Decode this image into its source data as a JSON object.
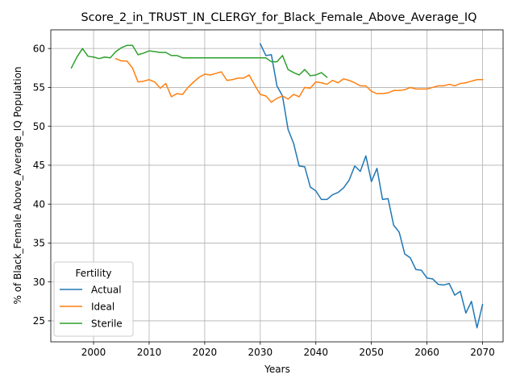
{
  "chart_data": {
    "type": "line",
    "title": "Score_2_in_TRUST_IN_CLERGY_for_Black_Female_Above_Average_IQ",
    "xlabel": "Years",
    "ylabel": "% of Black_Female Above_Average_IQ Population",
    "xlim": [
      1992.3,
      2073.7
    ],
    "ylim": [
      22.3,
      62.4
    ],
    "xticks": [
      2000,
      2010,
      2020,
      2030,
      2040,
      2050,
      2060,
      2070
    ],
    "yticks": [
      25,
      30,
      35,
      40,
      45,
      50,
      55,
      60
    ],
    "grid": true,
    "legend": {
      "title": "Fertility",
      "placement": "lower-left"
    },
    "series": [
      {
        "name": "Actual",
        "color": "#1f77b4",
        "x": [
          2030,
          2031,
          2032,
          2033,
          2034,
          2035,
          2036,
          2037,
          2038,
          2039,
          2040,
          2041,
          2042,
          2043,
          2044,
          2045,
          2046,
          2047,
          2048,
          2049,
          2050,
          2051,
          2052,
          2053,
          2054,
          2055,
          2056,
          2057,
          2058,
          2059,
          2060,
          2061,
          2062,
          2063,
          2064,
          2065,
          2066,
          2067,
          2068,
          2069,
          2070
        ],
        "y": [
          60.6,
          59.1,
          59.2,
          55.2,
          53.9,
          49.6,
          47.8,
          44.9,
          44.8,
          42.2,
          41.7,
          40.6,
          40.6,
          41.2,
          41.5,
          42.1,
          43.1,
          44.9,
          44.2,
          46.2,
          42.9,
          44.6,
          40.6,
          40.7,
          37.3,
          36.4,
          33.6,
          33.1,
          31.6,
          31.5,
          30.5,
          30.4,
          29.7,
          29.6,
          29.8,
          28.3,
          28.8,
          26.0,
          27.5,
          24.1,
          27.1
        ]
      },
      {
        "name": "Ideal",
        "color": "#ff7f0e",
        "x": [
          2004,
          2005,
          2006,
          2007,
          2008,
          2009,
          2010,
          2011,
          2012,
          2013,
          2014,
          2015,
          2016,
          2017,
          2018,
          2019,
          2020,
          2021,
          2022,
          2023,
          2024,
          2025,
          2026,
          2027,
          2028,
          2029,
          2030,
          2031,
          2032,
          2033,
          2034,
          2035,
          2036,
          2037,
          2038,
          2039,
          2040,
          2041,
          2042,
          2043,
          2044,
          2045,
          2046,
          2047,
          2048,
          2049,
          2050,
          2051,
          2052,
          2053,
          2054,
          2055,
          2056,
          2057,
          2058,
          2059,
          2060,
          2061,
          2062,
          2063,
          2064,
          2065,
          2066,
          2067,
          2068,
          2069,
          2070
        ],
        "y": [
          58.7,
          58.4,
          58.4,
          57.5,
          55.7,
          55.8,
          56.0,
          55.7,
          54.9,
          55.5,
          53.8,
          54.2,
          54.1,
          55.0,
          55.7,
          56.3,
          56.7,
          56.6,
          56.8,
          57.0,
          55.9,
          56.0,
          56.2,
          56.2,
          56.6,
          55.3,
          54.1,
          53.9,
          53.1,
          53.6,
          53.9,
          53.5,
          54.1,
          53.8,
          55.0,
          54.9,
          55.7,
          55.6,
          55.4,
          55.9,
          55.6,
          56.1,
          55.9,
          55.6,
          55.2,
          55.2,
          54.5,
          54.2,
          54.2,
          54.3,
          54.6,
          54.6,
          54.7,
          55.0,
          54.8,
          54.8,
          54.8,
          55.0,
          55.2,
          55.2,
          55.4,
          55.2,
          55.5,
          55.6,
          55.8,
          56.0,
          56.0
        ]
      },
      {
        "name": "Sterile",
        "color": "#2ca02c",
        "x": [
          1996,
          1997,
          1998,
          1999,
          2000,
          2001,
          2002,
          2003,
          2004,
          2005,
          2006,
          2007,
          2008,
          2009,
          2010,
          2011,
          2012,
          2013,
          2014,
          2015,
          2016,
          2017,
          2018,
          2019,
          2020,
          2021,
          2022,
          2023,
          2024,
          2025,
          2026,
          2027,
          2028,
          2029,
          2030,
          2031,
          2032,
          2033,
          2034,
          2035,
          2036,
          2037,
          2038,
          2039,
          2040,
          2041,
          2042
        ],
        "y": [
          57.5,
          58.9,
          60.0,
          59.0,
          58.9,
          58.7,
          58.9,
          58.8,
          59.6,
          60.1,
          60.4,
          60.4,
          59.2,
          59.4,
          59.7,
          59.6,
          59.5,
          59.5,
          59.1,
          59.1,
          58.8,
          58.8,
          58.8,
          58.8,
          58.8,
          58.8,
          58.8,
          58.8,
          58.8,
          58.8,
          58.8,
          58.8,
          58.8,
          58.8,
          58.8,
          58.8,
          58.3,
          58.3,
          59.1,
          57.3,
          56.9,
          56.6,
          57.3,
          56.5,
          56.6,
          56.9,
          56.3
        ]
      }
    ]
  }
}
